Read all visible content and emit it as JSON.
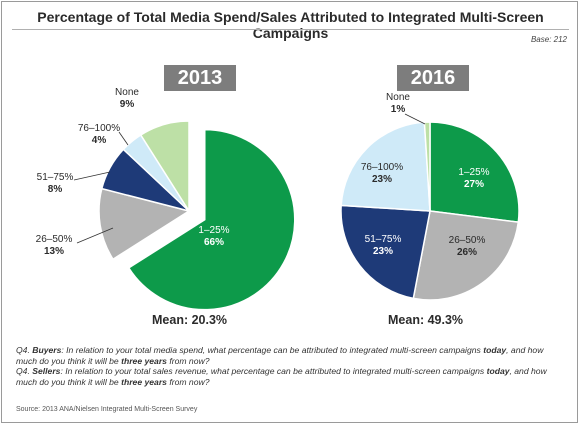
{
  "title": "Percentage of Total Media Spend/Sales Attributed to Integrated Multi-Screen Campaigns",
  "base_note": "Base: 212",
  "chart_data": [
    {
      "type": "pie",
      "title": "2013",
      "categories": [
        "1–25%",
        "26–50%",
        "51–75%",
        "76–100%",
        "None"
      ],
      "values": [
        66,
        13,
        8,
        4,
        9
      ],
      "value_labels": [
        "66%",
        "13%",
        "8%",
        "4%",
        "9%"
      ],
      "colors": [
        "#0d9a4a",
        "#b3b3b3",
        "#1e3a78",
        "#cfeaf8",
        "#bde0a6"
      ],
      "mean": "Mean: 20.3%"
    },
    {
      "type": "pie",
      "title": "2016",
      "categories": [
        "1–25%",
        "26–50%",
        "51–75%",
        "76–100%",
        "None"
      ],
      "values": [
        27,
        26,
        23,
        23,
        1
      ],
      "value_labels": [
        "27%",
        "26%",
        "23%",
        "23%",
        "1%"
      ],
      "colors": [
        "#0d9a4a",
        "#b3b3b3",
        "#1e3a78",
        "#cfeaf8",
        "#bde0a6"
      ],
      "mean": "Mean: 49.3%"
    }
  ],
  "questions": {
    "q1_lead": "Q4. ",
    "q1_who": "Buyers",
    "q1_text": ": In relation to your total media spend, what percentage can be attributed to integrated multi-screen campaigns ",
    "q1_today": "today",
    "q1_text2": ", and how much do you think it will be ",
    "q1_years": "three years",
    "q1_text3": " from now?",
    "q2_lead": "Q4. ",
    "q2_who": "Sellers",
    "q2_text": ": In relation to your total sales revenue, what percentage can be attributed to integrated multi-screen campaigns ",
    "q2_today": "today",
    "q2_text2": ", and how much do you think it will be ",
    "q2_years": "three years",
    "q2_text3": " from now?"
  },
  "source": "Source: 2013 ANA/Nielsen Integrated Multi-Screen Survey"
}
